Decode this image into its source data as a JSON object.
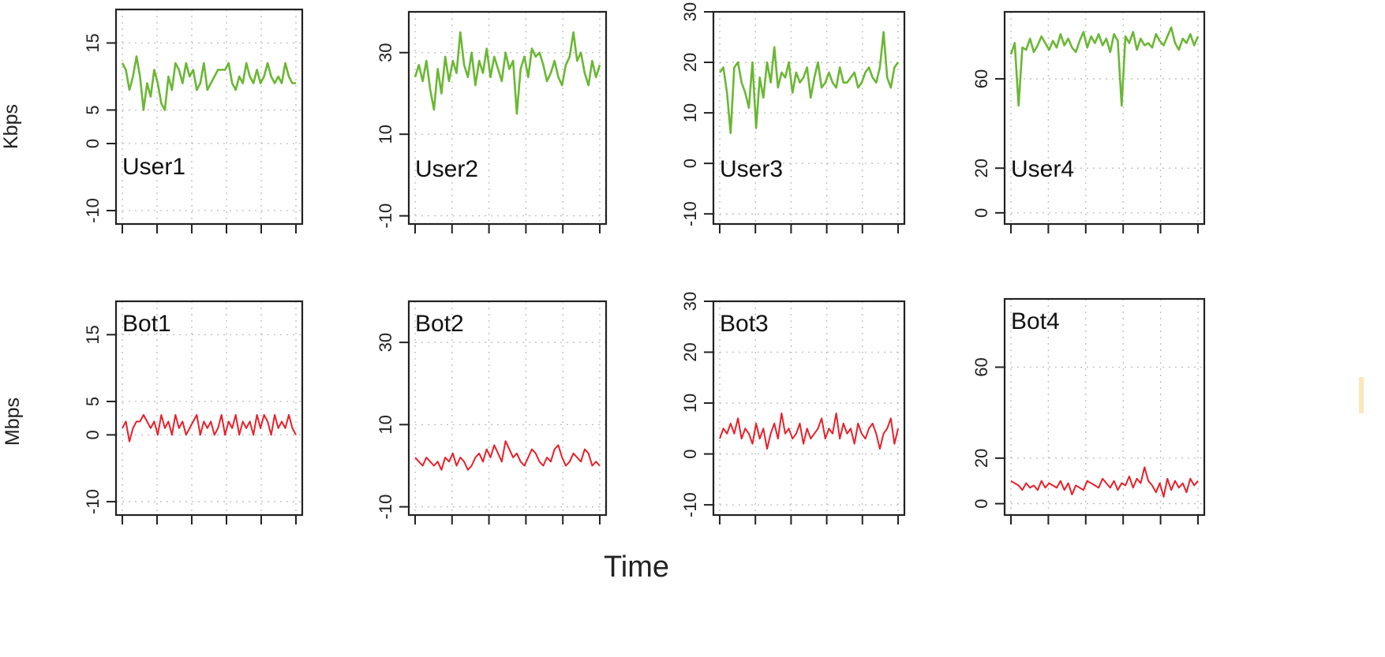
{
  "figure": {
    "x_axis_label": "Time",
    "row_labels": [
      "Kbps",
      "Mbps"
    ],
    "colors": {
      "user_line": "#6ab734",
      "bot_line": "#e8202a",
      "grid": "#bdbdbd",
      "axis": "#222222"
    }
  },
  "chart_data": [
    {
      "type": "line",
      "label": "User1",
      "series": [
        {
          "values": [
            12,
            11,
            8,
            10,
            13,
            10,
            5,
            9,
            7,
            11,
            9,
            6,
            5,
            10,
            8,
            12,
            11,
            9,
            12,
            10,
            11,
            8,
            9,
            12,
            8,
            9,
            10,
            11,
            11,
            11,
            12,
            9,
            8,
            10,
            9,
            12,
            10,
            9,
            11,
            9,
            10,
            12,
            10,
            9,
            10,
            9,
            12,
            10,
            9,
            9
          ]
        }
      ],
      "ylim": [
        -12,
        20
      ],
      "yticks": [
        -10,
        0,
        5,
        15
      ],
      "grid": true
    },
    {
      "type": "line",
      "label": "User2",
      "series": [
        {
          "values": [
            24,
            27,
            23,
            28,
            21,
            16,
            26,
            20,
            29,
            23,
            28,
            25,
            35,
            27,
            24,
            30,
            22,
            28,
            25,
            31,
            24,
            29,
            26,
            23,
            30,
            26,
            28,
            15,
            26,
            29,
            24,
            31,
            29,
            30,
            27,
            23,
            25,
            28,
            24,
            22,
            27,
            29,
            35,
            28,
            30,
            25,
            22,
            28,
            24,
            27
          ]
        }
      ],
      "ylim": [
        -12,
        40
      ],
      "yticks": [
        -10,
        10,
        30
      ],
      "grid": true
    },
    {
      "type": "line",
      "label": "User3",
      "series": [
        {
          "values": [
            18,
            19,
            14,
            6,
            19,
            20,
            16,
            14,
            11,
            20,
            7,
            17,
            13,
            20,
            16,
            23,
            15,
            18,
            17,
            20,
            14,
            18,
            16,
            17,
            19,
            13,
            17,
            20,
            15,
            16,
            18,
            16,
            15,
            19,
            16,
            16,
            17,
            18,
            15,
            16,
            18,
            19,
            17,
            16,
            19,
            26,
            17,
            15,
            19,
            20
          ]
        }
      ],
      "ylim": [
        -12,
        30
      ],
      "yticks": [
        -10,
        0,
        10,
        20,
        30
      ],
      "grid": true
    },
    {
      "type": "line",
      "label": "User4",
      "series": [
        {
          "values": [
            71,
            76,
            48,
            74,
            73,
            78,
            72,
            75,
            79,
            76,
            73,
            77,
            74,
            80,
            75,
            78,
            74,
            72,
            77,
            81,
            74,
            79,
            76,
            80,
            75,
            78,
            72,
            80,
            77,
            48,
            79,
            76,
            81,
            73,
            78,
            75,
            76,
            74,
            80,
            77,
            75,
            79,
            83,
            76,
            73,
            78,
            76,
            80,
            75,
            79
          ]
        }
      ],
      "ylim": [
        -5,
        90
      ],
      "yticks": [
        0,
        20,
        60
      ],
      "grid": true
    },
    {
      "type": "line",
      "label": "Bot1",
      "series": [
        {
          "values": [
            1,
            2,
            -1,
            1,
            2,
            2,
            3,
            2,
            1,
            2,
            0,
            3,
            1,
            2,
            0,
            3,
            1,
            2,
            0,
            1,
            2,
            3,
            0,
            2,
            1,
            2,
            0,
            1,
            3,
            0,
            2,
            1,
            3,
            0,
            2,
            1,
            2,
            0,
            3,
            1,
            3,
            2,
            0,
            3,
            1,
            2,
            1,
            3,
            1,
            0
          ]
        }
      ],
      "ylim": [
        -12,
        20
      ],
      "yticks": [
        -10,
        0,
        5,
        15
      ],
      "grid": true
    },
    {
      "type": "line",
      "label": "Bot2",
      "series": [
        {
          "values": [
            2,
            1,
            0,
            2,
            1,
            0,
            1,
            -1,
            2,
            1,
            3,
            0,
            2,
            1,
            -1,
            0,
            2,
            3,
            1,
            4,
            2,
            5,
            3,
            1,
            6,
            4,
            2,
            3,
            1,
            0,
            2,
            4,
            3,
            1,
            0,
            2,
            1,
            4,
            5,
            2,
            0,
            1,
            3,
            2,
            1,
            4,
            3,
            0,
            1,
            0
          ]
        }
      ],
      "ylim": [
        -12,
        40
      ],
      "yticks": [
        -10,
        10,
        30
      ],
      "grid": true
    },
    {
      "type": "line",
      "label": "Bot3",
      "series": [
        {
          "values": [
            3,
            5,
            4,
            6,
            4,
            7,
            3,
            5,
            4,
            2,
            6,
            3,
            5,
            1,
            4,
            6,
            3,
            8,
            4,
            5,
            3,
            4,
            6,
            2,
            5,
            3,
            4,
            5,
            7,
            3,
            5,
            4,
            8,
            3,
            6,
            4,
            5,
            2,
            6,
            4,
            3,
            5,
            6,
            4,
            1,
            4,
            5,
            7,
            2,
            5
          ]
        }
      ],
      "ylim": [
        -12,
        30
      ],
      "yticks": [
        -10,
        0,
        10,
        20,
        30
      ],
      "grid": true
    },
    {
      "type": "line",
      "label": "Bot4",
      "series": [
        {
          "values": [
            10,
            9,
            8,
            6,
            9,
            7,
            8,
            6,
            10,
            7,
            9,
            8,
            7,
            10,
            6,
            9,
            4,
            8,
            7,
            6,
            10,
            9,
            8,
            7,
            11,
            9,
            7,
            10,
            6,
            9,
            8,
            12,
            7,
            11,
            9,
            16,
            10,
            8,
            5,
            9,
            3,
            11,
            6,
            10,
            7,
            9,
            5,
            11,
            8,
            10
          ]
        }
      ],
      "ylim": [
        -5,
        90
      ],
      "yticks": [
        0,
        20,
        60
      ],
      "grid": true
    }
  ]
}
